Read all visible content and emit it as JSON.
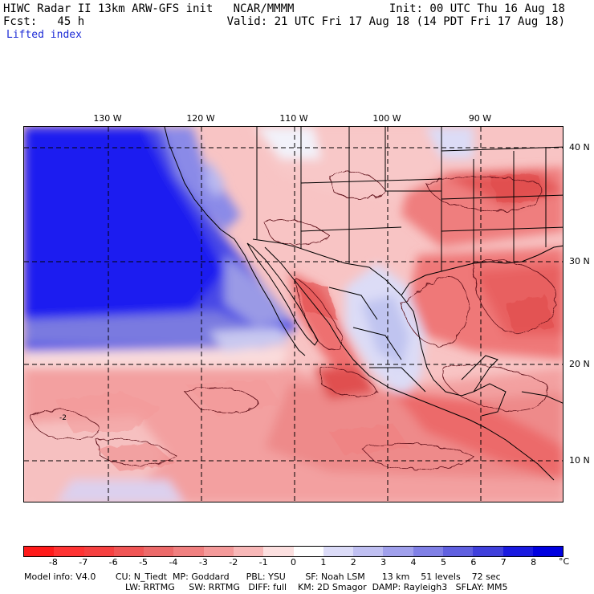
{
  "header": {
    "title_left": "HIWC Radar II 13km ARW-GFS init   NCAR/MMMM",
    "init": "Init: 00 UTC Thu 16 Aug 18",
    "fcst": "Fcst:   45 h",
    "valid": "Valid: 21 UTC Fri 17 Aug 18 (14 PDT Fri 17 Aug 18)",
    "field": "Lifted index"
  },
  "map": {
    "lon_labels": [
      "130 W",
      "120 W",
      "110 W",
      "100 W",
      "90 W"
    ],
    "lat_labels": [
      "40 N",
      "30 N",
      "20 N",
      "10 N"
    ],
    "contour_label": "-2"
  },
  "colorbar": {
    "unit": "°C",
    "ticks": [
      "-8",
      "-7",
      "-6",
      "-5",
      "-4",
      "-3",
      "-2",
      "-1",
      "0",
      "1",
      "2",
      "3",
      "4",
      "5",
      "6",
      "7",
      "8"
    ],
    "colors": [
      "#ff1a1a",
      "#ff3333",
      "#f64040",
      "#f05555",
      "#ec6a6a",
      "#f08080",
      "#f49a9a",
      "#f8b8b8",
      "#fce0e0",
      "#ffffff",
      "#dcdcf8",
      "#c0c0f2",
      "#a0a0ec",
      "#8080e6",
      "#6060e0",
      "#4040dc",
      "#1a1ae0",
      "#0000e0"
    ]
  },
  "footer": {
    "line1": "Model info: V4.0       CU: N_Tiedt  MP: Goddard      PBL: YSU       SF: Noah LSM      13 km    51 levels    72 sec",
    "line2": "LW: RRTMG     SW: RRTMG   DIFF: full    KM: 2D Smagor  DAMP: Rayleigh3   SFLAY: MM5"
  }
}
